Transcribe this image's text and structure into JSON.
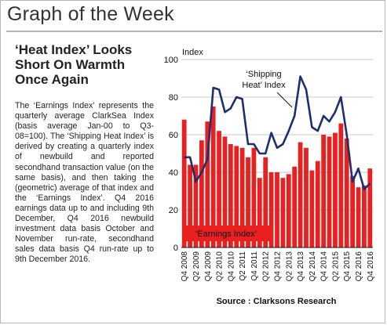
{
  "page": {
    "title": "Graph of the Week",
    "headline": "‘Heat Index’ Looks Short On Warmth Once Again",
    "body": "The ‘Earnings Index’ represents the quarterly average ClarkSea Index (basis average Jan-00 to Q3-08=100). The ‘Shipping Heat Index’ is derived by creating a quarterly index of newbuild and reported secondhand transaction value (on the same basis), and then taking the (geometric) average of that index and the ‘Earnings Index’. Q4 2016 earnings data up to and including 9th December, Q4 2016 newbuild investment data basis October and November run-rate, secondhand sales data basis Q4 run-rate up to 9th December 2016.",
    "source": "Source : Clarksons Research"
  },
  "colors": {
    "bars": "#e8201f",
    "line": "#1e2f6e",
    "grid": "#c8c8c8",
    "plot_bg": "#ffffff"
  },
  "chart_data": {
    "type": "bar",
    "ylabel": "Index",
    "ylim": [
      0,
      100
    ],
    "yticks": [
      0,
      20,
      40,
      60,
      80,
      100
    ],
    "grid": true,
    "categories": [
      "Q4 2008",
      "Q1 2009",
      "Q2 2009",
      "Q3 2009",
      "Q4 2009",
      "Q1 2010",
      "Q2 2010",
      "Q3 2010",
      "Q4 2010",
      "Q1 2011",
      "Q2 2011",
      "Q3 2011",
      "Q4 2011",
      "Q1 2012",
      "Q2 2012",
      "Q3 2012",
      "Q4 2012",
      "Q1 2013",
      "Q2 2013",
      "Q3 2013",
      "Q4 2013",
      "Q1 2014",
      "Q2 2014",
      "Q3 2014",
      "Q4 2014",
      "Q1 2015",
      "Q2 2015",
      "Q3 2015",
      "Q4 2015",
      "Q1 2016",
      "Q2 2016",
      "Q3 2016",
      "Q4 2016"
    ],
    "tick_labels": [
      "Q4 2008",
      "Q2 2009",
      "Q4 2009",
      "Q2 2010",
      "Q4 2010",
      "Q2 2011",
      "Q4 2011",
      "Q2 2012",
      "Q4 2012",
      "Q2 2013",
      "Q4 2013",
      "Q2 2014",
      "Q4 2014",
      "Q2 2015",
      "Q4 2015",
      "Q2 2016",
      "Q4 2016"
    ],
    "series": [
      {
        "name": "‘Earnings Index’",
        "type": "bar",
        "values": [
          68,
          44,
          44,
          57,
          67,
          75,
          62,
          59,
          55,
          54,
          53,
          48,
          53,
          37,
          48,
          40,
          40,
          37,
          39,
          43,
          56,
          53,
          41,
          46,
          60,
          59,
          61,
          66,
          58,
          38,
          32,
          33,
          42
        ]
      },
      {
        "name": "‘Shipping Heat’ Index",
        "type": "line",
        "values": [
          48,
          48,
          35,
          40,
          47,
          85,
          84,
          72,
          74,
          80,
          79,
          55,
          55,
          50,
          50,
          61,
          53,
          55,
          62,
          70,
          91,
          84,
          64,
          62,
          70,
          67,
          72,
          80,
          60,
          35,
          42,
          31,
          34
        ]
      }
    ],
    "annotations": {
      "bar_legend": "‘Earnings Index’",
      "line_label_1": "‘Shipping",
      "line_label_2": "Heat’ Index"
    }
  }
}
